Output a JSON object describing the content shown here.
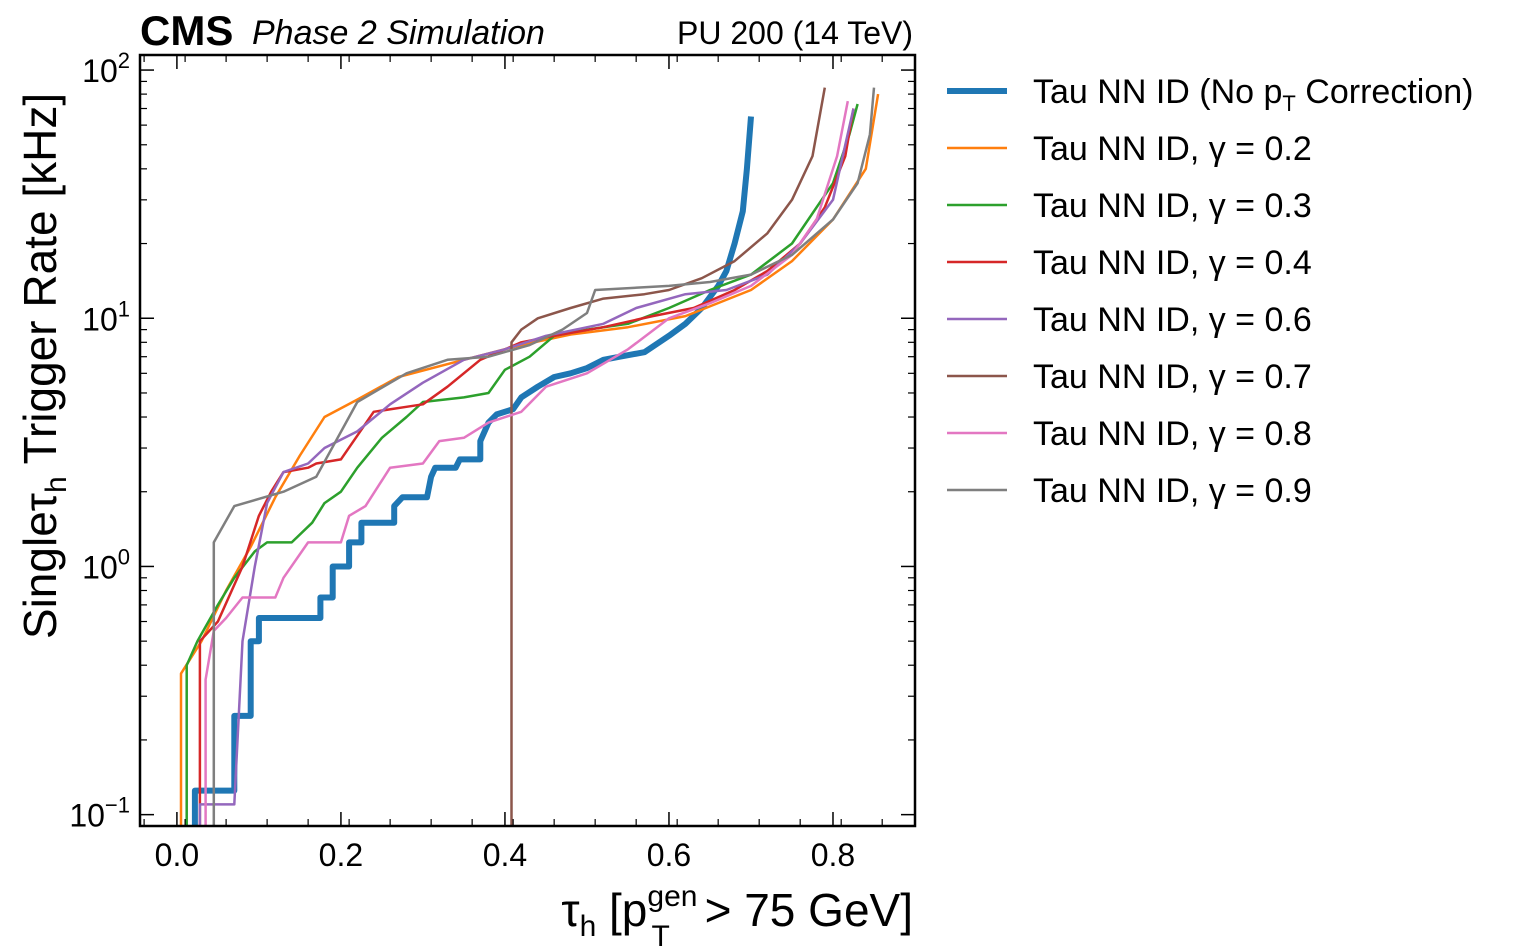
{
  "header": {
    "experiment": "CMS",
    "status": "Phase 2 Simulation",
    "run_info": "PU 200 (14 TeV)"
  },
  "chart_data": {
    "type": "line",
    "xlabel": "τh [pTgen > 75 GeV]",
    "ylabel": "Singleτh Trigger Rate [kHz]",
    "xlim": [
      -0.045,
      0.9
    ],
    "ylim": [
      0.09,
      115
    ],
    "yscale": "log",
    "x_ticks": [
      "0.0",
      "0.2",
      "0.4",
      "0.6",
      "0.8"
    ],
    "x_tick_values": [
      0.0,
      0.2,
      0.4,
      0.6,
      0.8
    ],
    "y_ticks": [
      {
        "base": "10",
        "exp": "−1",
        "value": 0.1
      },
      {
        "base": "10",
        "exp": "0",
        "value": 1
      },
      {
        "base": "10",
        "exp": "1",
        "value": 10
      },
      {
        "base": "10",
        "exp": "2",
        "value": 100
      }
    ],
    "legend_position": "outside-right",
    "grid": false,
    "series": [
      {
        "name": "Tau NN ID (No pT Correction)",
        "legend_main": "Tau NN ID (No p",
        "legend_sub": "T",
        "legend_tail": " Correction)",
        "color": "#1f77b4",
        "width": 6,
        "points": [
          [
            0.022,
            0.09
          ],
          [
            0.022,
            0.125
          ],
          [
            0.07,
            0.125
          ],
          [
            0.07,
            0.25
          ],
          [
            0.09,
            0.25
          ],
          [
            0.09,
            0.5
          ],
          [
            0.1,
            0.5
          ],
          [
            0.1,
            0.62
          ],
          [
            0.175,
            0.62
          ],
          [
            0.175,
            0.75
          ],
          [
            0.19,
            0.75
          ],
          [
            0.19,
            1.0
          ],
          [
            0.21,
            1.0
          ],
          [
            0.21,
            1.25
          ],
          [
            0.225,
            1.25
          ],
          [
            0.225,
            1.5
          ],
          [
            0.265,
            1.5
          ],
          [
            0.265,
            1.75
          ],
          [
            0.275,
            1.9
          ],
          [
            0.305,
            1.9
          ],
          [
            0.31,
            2.3
          ],
          [
            0.315,
            2.5
          ],
          [
            0.34,
            2.5
          ],
          [
            0.345,
            2.7
          ],
          [
            0.37,
            2.7
          ],
          [
            0.37,
            3.2
          ],
          [
            0.38,
            3.8
          ],
          [
            0.39,
            4.1
          ],
          [
            0.41,
            4.3
          ],
          [
            0.42,
            4.8
          ],
          [
            0.44,
            5.3
          ],
          [
            0.46,
            5.8
          ],
          [
            0.48,
            6.0
          ],
          [
            0.5,
            6.3
          ],
          [
            0.52,
            6.8
          ],
          [
            0.54,
            7.0
          ],
          [
            0.57,
            7.3
          ],
          [
            0.6,
            8.5
          ],
          [
            0.62,
            9.5
          ],
          [
            0.64,
            11
          ],
          [
            0.66,
            13.5
          ],
          [
            0.67,
            15.5
          ],
          [
            0.68,
            20
          ],
          [
            0.69,
            27
          ],
          [
            0.695,
            40
          ],
          [
            0.7,
            65
          ]
        ]
      },
      {
        "name": "Tau NN ID, γ = 0.2",
        "color": "#ff7f0e",
        "width": 2.5,
        "points": [
          [
            0.005,
            0.09
          ],
          [
            0.005,
            0.37
          ],
          [
            0.03,
            0.5
          ],
          [
            0.06,
            0.8
          ],
          [
            0.09,
            1.2
          ],
          [
            0.12,
            1.9
          ],
          [
            0.15,
            2.8
          ],
          [
            0.18,
            4.0
          ],
          [
            0.22,
            4.7
          ],
          [
            0.27,
            5.8
          ],
          [
            0.35,
            6.8
          ],
          [
            0.42,
            7.8
          ],
          [
            0.48,
            8.6
          ],
          [
            0.55,
            9.2
          ],
          [
            0.62,
            10.2
          ],
          [
            0.7,
            13
          ],
          [
            0.75,
            17
          ],
          [
            0.8,
            25
          ],
          [
            0.84,
            40
          ],
          [
            0.855,
            80
          ]
        ]
      },
      {
        "name": "Tau NN ID, γ = 0.3",
        "color": "#2ca02c",
        "width": 2.5,
        "points": [
          [
            0.012,
            0.09
          ],
          [
            0.012,
            0.4
          ],
          [
            0.025,
            0.5
          ],
          [
            0.05,
            0.7
          ],
          [
            0.07,
            0.9
          ],
          [
            0.095,
            1.15
          ],
          [
            0.11,
            1.25
          ],
          [
            0.14,
            1.25
          ],
          [
            0.165,
            1.5
          ],
          [
            0.18,
            1.8
          ],
          [
            0.2,
            2.0
          ],
          [
            0.22,
            2.5
          ],
          [
            0.25,
            3.3
          ],
          [
            0.28,
            4.0
          ],
          [
            0.3,
            4.6
          ],
          [
            0.35,
            4.8
          ],
          [
            0.38,
            5.0
          ],
          [
            0.4,
            6.2
          ],
          [
            0.43,
            7.0
          ],
          [
            0.46,
            8.5
          ],
          [
            0.5,
            9.0
          ],
          [
            0.55,
            9.5
          ],
          [
            0.6,
            11
          ],
          [
            0.65,
            13
          ],
          [
            0.7,
            15
          ],
          [
            0.75,
            20
          ],
          [
            0.8,
            35
          ],
          [
            0.82,
            55
          ],
          [
            0.83,
            73
          ]
        ]
      },
      {
        "name": "Tau NN ID, γ = 0.4",
        "color": "#d62728",
        "width": 2.5,
        "points": [
          [
            0.028,
            0.09
          ],
          [
            0.028,
            0.5
          ],
          [
            0.05,
            0.6
          ],
          [
            0.08,
            1.0
          ],
          [
            0.1,
            1.6
          ],
          [
            0.115,
            2.0
          ],
          [
            0.13,
            2.4
          ],
          [
            0.16,
            2.5
          ],
          [
            0.17,
            2.6
          ],
          [
            0.2,
            2.7
          ],
          [
            0.24,
            4.2
          ],
          [
            0.28,
            4.4
          ],
          [
            0.3,
            4.5
          ],
          [
            0.33,
            5.3
          ],
          [
            0.37,
            6.8
          ],
          [
            0.42,
            8.0
          ],
          [
            0.46,
            8.5
          ],
          [
            0.52,
            9.2
          ],
          [
            0.58,
            10.2
          ],
          [
            0.63,
            11
          ],
          [
            0.68,
            13
          ],
          [
            0.72,
            15.5
          ],
          [
            0.76,
            20
          ],
          [
            0.79,
            28
          ],
          [
            0.815,
            45
          ],
          [
            0.825,
            70
          ]
        ]
      },
      {
        "name": "Tau NN ID, γ = 0.6",
        "color": "#9467bd",
        "width": 2.5,
        "points": [
          [
            0.028,
            0.09
          ],
          [
            0.028,
            0.11
          ],
          [
            0.07,
            0.11
          ],
          [
            0.07,
            0.11
          ],
          [
            0.08,
            0.5
          ],
          [
            0.095,
            1.0
          ],
          [
            0.11,
            1.8
          ],
          [
            0.13,
            2.4
          ],
          [
            0.16,
            2.6
          ],
          [
            0.18,
            3.0
          ],
          [
            0.22,
            3.5
          ],
          [
            0.26,
            4.5
          ],
          [
            0.3,
            5.5
          ],
          [
            0.35,
            6.8
          ],
          [
            0.4,
            7.5
          ],
          [
            0.45,
            8.5
          ],
          [
            0.52,
            9.5
          ],
          [
            0.56,
            11
          ],
          [
            0.62,
            12.5
          ],
          [
            0.67,
            13
          ],
          [
            0.72,
            15
          ],
          [
            0.76,
            20
          ],
          [
            0.8,
            30
          ],
          [
            0.815,
            50
          ],
          [
            0.825,
            70
          ]
        ]
      },
      {
        "name": "Tau NN ID, γ = 0.7",
        "color": "#8c564b",
        "width": 2.5,
        "points": [
          [
            0.408,
            0.09
          ],
          [
            0.408,
            8.0
          ],
          [
            0.42,
            9.0
          ],
          [
            0.44,
            10.0
          ],
          [
            0.48,
            11.0
          ],
          [
            0.52,
            12.0
          ],
          [
            0.57,
            12.5
          ],
          [
            0.6,
            13.0
          ],
          [
            0.64,
            14.5
          ],
          [
            0.68,
            17
          ],
          [
            0.72,
            22
          ],
          [
            0.75,
            30
          ],
          [
            0.775,
            45
          ],
          [
            0.79,
            85
          ]
        ]
      },
      {
        "name": "Tau NN ID, γ = 0.8",
        "color": "#e377c2",
        "width": 2.5,
        "points": [
          [
            0.035,
            0.09
          ],
          [
            0.035,
            0.35
          ],
          [
            0.045,
            0.55
          ],
          [
            0.06,
            0.62
          ],
          [
            0.08,
            0.75
          ],
          [
            0.12,
            0.75
          ],
          [
            0.13,
            0.9
          ],
          [
            0.16,
            1.25
          ],
          [
            0.2,
            1.25
          ],
          [
            0.21,
            1.6
          ],
          [
            0.23,
            1.75
          ],
          [
            0.26,
            2.5
          ],
          [
            0.3,
            2.6
          ],
          [
            0.32,
            3.2
          ],
          [
            0.35,
            3.3
          ],
          [
            0.38,
            3.8
          ],
          [
            0.42,
            4.2
          ],
          [
            0.45,
            5.3
          ],
          [
            0.5,
            6.0
          ],
          [
            0.55,
            7.5
          ],
          [
            0.6,
            10
          ],
          [
            0.65,
            11.5
          ],
          [
            0.7,
            13.5
          ],
          [
            0.75,
            18
          ],
          [
            0.78,
            25
          ],
          [
            0.805,
            45
          ],
          [
            0.818,
            75
          ]
        ]
      },
      {
        "name": "Tau NN ID, γ = 0.9",
        "color": "#7f7f7f",
        "width": 2.5,
        "points": [
          [
            0.045,
            0.09
          ],
          [
            0.045,
            1.25
          ],
          [
            0.07,
            1.75
          ],
          [
            0.13,
            2.0
          ],
          [
            0.17,
            2.3
          ],
          [
            0.22,
            4.6
          ],
          [
            0.28,
            6.0
          ],
          [
            0.33,
            6.8
          ],
          [
            0.38,
            7.0
          ],
          [
            0.43,
            7.8
          ],
          [
            0.47,
            9.0
          ],
          [
            0.5,
            10.5
          ],
          [
            0.51,
            13.0
          ],
          [
            0.6,
            13.5
          ],
          [
            0.65,
            14.0
          ],
          [
            0.7,
            15.0
          ],
          [
            0.75,
            18
          ],
          [
            0.8,
            25
          ],
          [
            0.83,
            35
          ],
          [
            0.845,
            55
          ],
          [
            0.85,
            85
          ]
        ]
      }
    ]
  }
}
